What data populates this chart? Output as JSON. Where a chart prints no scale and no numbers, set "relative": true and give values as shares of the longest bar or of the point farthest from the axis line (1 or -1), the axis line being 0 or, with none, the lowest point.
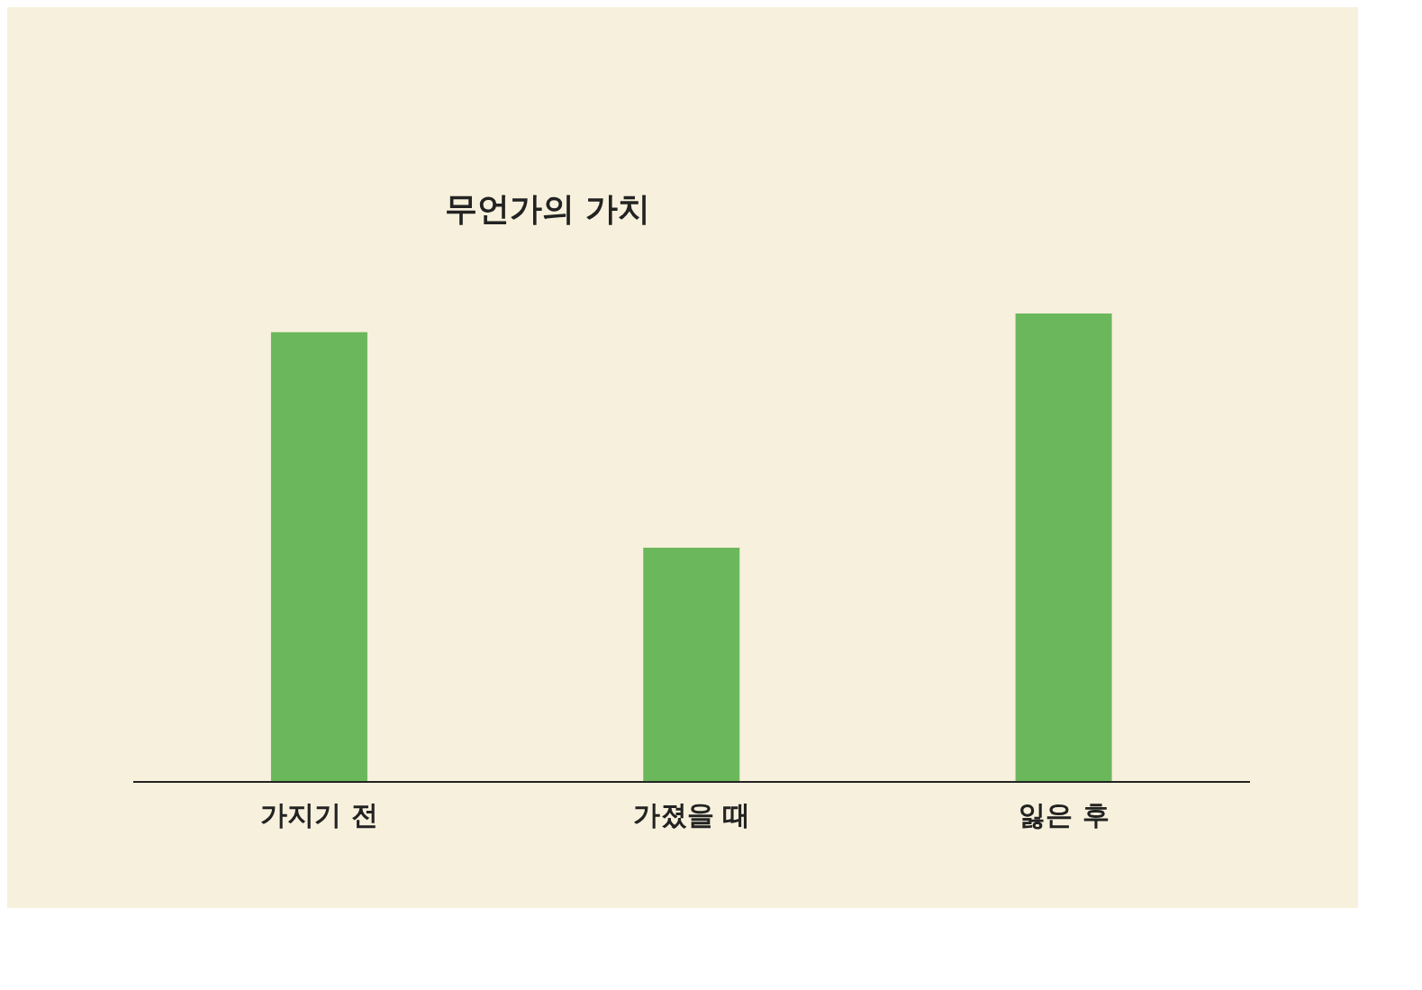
{
  "chart_data": {
    "type": "bar",
    "title": "무언가의 가치",
    "relative": true,
    "categories": [
      "가지기 전",
      "가졌을 때",
      "잃은 후"
    ],
    "values": [
      0.96,
      0.5,
      1
    ],
    "color": "#6bb85c"
  }
}
